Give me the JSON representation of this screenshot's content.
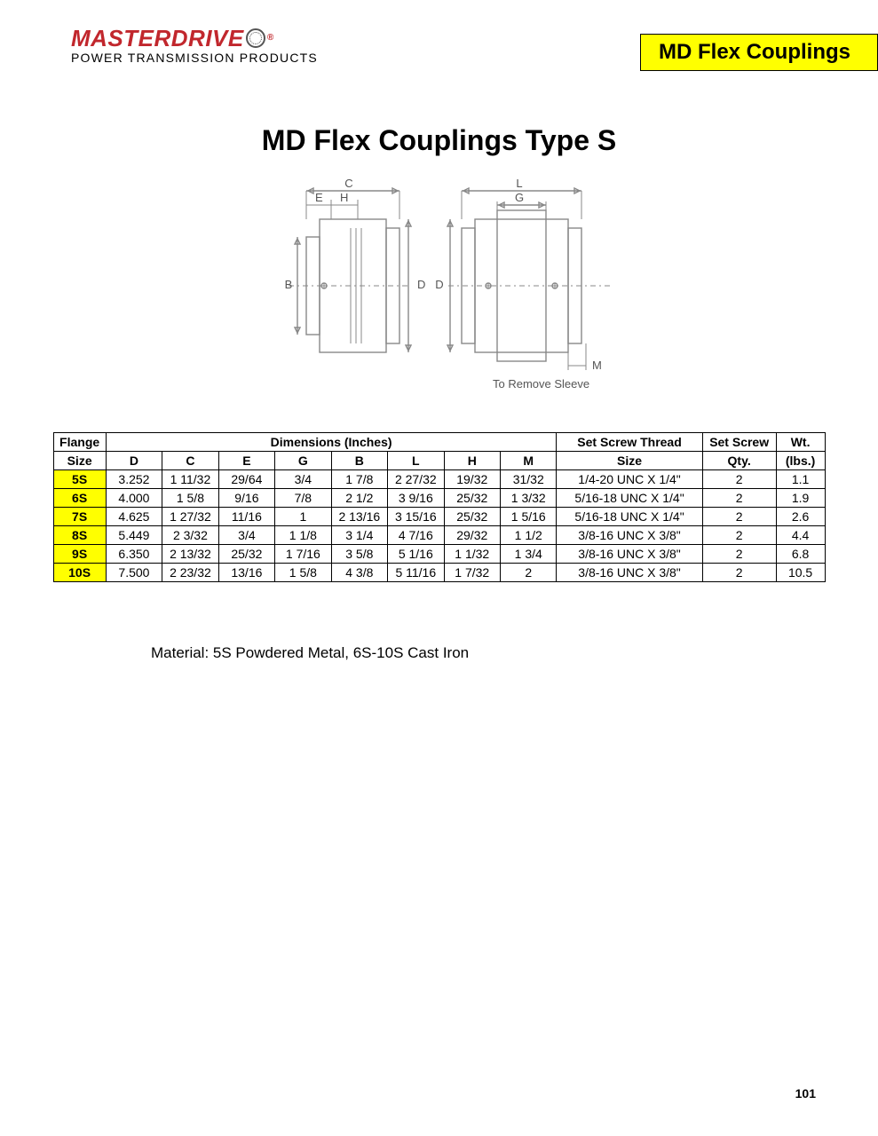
{
  "brand": {
    "name": "MASTERDRIVE",
    "registered": "®",
    "tagline": "POWER TRANSMISSION PRODUCTS",
    "name_color": "#c1272d",
    "tagline_color": "#000000"
  },
  "banner": {
    "text": "MD Flex Couplings",
    "bg_color": "#ffff00",
    "border_color": "#000000"
  },
  "title": "MD Flex Couplings Type S",
  "diagram": {
    "labels": {
      "C": "C",
      "E": "E",
      "H": "H",
      "B": "B",
      "D": "D",
      "L": "L",
      "G": "G",
      "M": "M"
    },
    "note": "To Remove Sleeve"
  },
  "table": {
    "header": {
      "flange": "Flange",
      "size": "Size",
      "dimensions": "Dimensions (Inches)",
      "dim_cols": [
        "D",
        "C",
        "E",
        "G",
        "B",
        "L",
        "H",
        "M"
      ],
      "thread_top": "Set Screw Thread",
      "thread_bottom": "Size",
      "qty_top": "Set Screw",
      "qty_bottom": "Qty.",
      "wt_top": "Wt.",
      "wt_bottom": "(lbs.)"
    },
    "rows": [
      {
        "flange": "5S",
        "D": "3.252",
        "C": "1 11/32",
        "E": "29/64",
        "G": "3/4",
        "B": "1 7/8",
        "L": "2 27/32",
        "H": "19/32",
        "M": "31/32",
        "thread": "1/4-20 UNC X 1/4\"",
        "qty": "2",
        "wt": "1.1"
      },
      {
        "flange": "6S",
        "D": "4.000",
        "C": "1 5/8",
        "E": "9/16",
        "G": "7/8",
        "B": "2 1/2",
        "L": "3 9/16",
        "H": "25/32",
        "M": "1 3/32",
        "thread": "5/16-18 UNC X 1/4\"",
        "qty": "2",
        "wt": "1.9"
      },
      {
        "flange": "7S",
        "D": "4.625",
        "C": "1 27/32",
        "E": "11/16",
        "G": "1",
        "B": "2 13/16",
        "L": "3 15/16",
        "H": "25/32",
        "M": "1 5/16",
        "thread": "5/16-18 UNC X 1/4\"",
        "qty": "2",
        "wt": "2.6"
      },
      {
        "flange": "8S",
        "D": "5.449",
        "C": "2 3/32",
        "E": "3/4",
        "G": "1 1/8",
        "B": "3 1/4",
        "L": "4 7/16",
        "H": "29/32",
        "M": "1 1/2",
        "thread": "3/8-16 UNC X 3/8\"",
        "qty": "2",
        "wt": "4.4"
      },
      {
        "flange": "9S",
        "D": "6.350",
        "C": "2 13/32",
        "E": "25/32",
        "G": "1 7/16",
        "B": "3 5/8",
        "L": "5 1/16",
        "H": "1 1/32",
        "M": "1 3/4",
        "thread": "3/8-16 UNC X 3/8\"",
        "qty": "2",
        "wt": "6.8"
      },
      {
        "flange": "10S",
        "D": "7.500",
        "C": "2 23/32",
        "E": "13/16",
        "G": "1 5/8",
        "B": "4 3/8",
        "L": "5 11/16",
        "H": "1 7/32",
        "M": "2",
        "thread": "3/8-16 UNC X 3/8\"",
        "qty": "2",
        "wt": "10.5"
      }
    ],
    "flange_bg": "#ffff00"
  },
  "material_note": "Material: 5S Powdered Metal, 6S-10S Cast Iron",
  "page_number": "101"
}
